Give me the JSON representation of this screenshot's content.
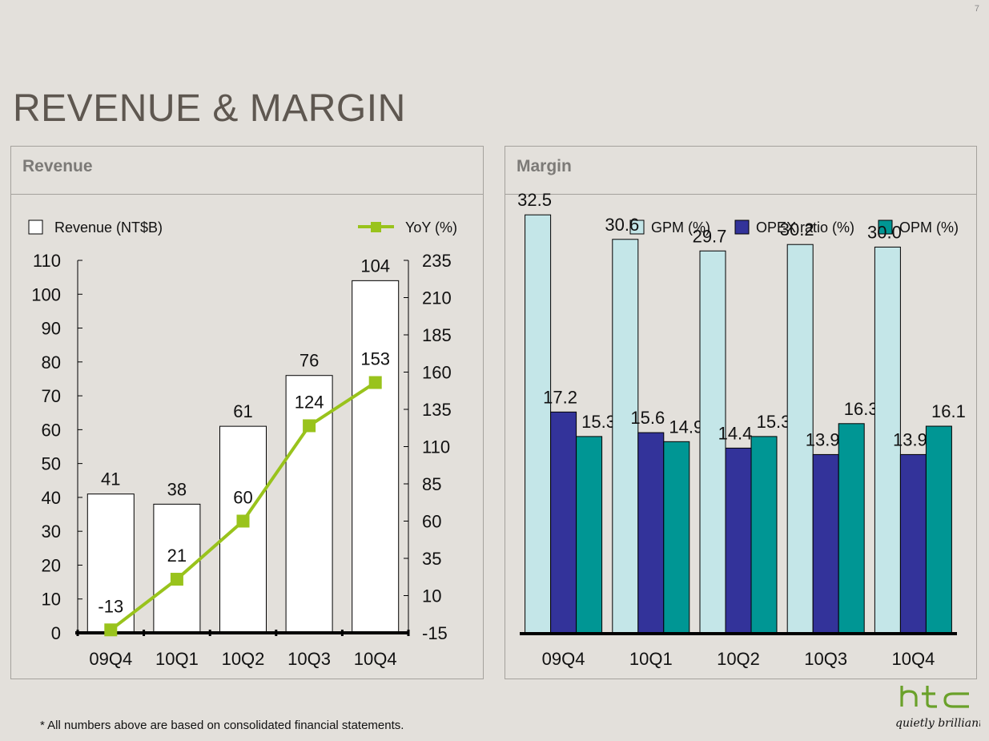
{
  "page": {
    "number": "7",
    "title": "REVENUE & MARGIN"
  },
  "footnote": "*  All numbers above are based on consolidated financial statements.",
  "logo": {
    "wordmark": "htc",
    "tagline": "quietly brilliant",
    "color": "#6aa12a"
  },
  "panels": {
    "revenue_title": "Revenue",
    "margin_title": "Margin"
  },
  "chart_data": [
    {
      "type": "bar",
      "categories": [
        "09Q4",
        "10Q1",
        "10Q2",
        "10Q3",
        "10Q4"
      ],
      "series": [
        {
          "name": "Revenue (NT$B)",
          "kind": "bar",
          "axis": "left",
          "values": [
            41,
            38,
            61,
            76,
            104
          ],
          "labels": [
            "41",
            "38",
            "61",
            "76",
            "104"
          ],
          "color": "#ffffff"
        },
        {
          "name": "YoY (%)",
          "kind": "line",
          "axis": "right",
          "values": [
            -13,
            21,
            60,
            124,
            153
          ],
          "labels": [
            "-13",
            "21",
            "60",
            "124",
            "153"
          ],
          "color": "#99c31c"
        }
      ],
      "ylim": [
        0,
        110
      ],
      "yticks": [
        0,
        10,
        20,
        30,
        40,
        50,
        60,
        70,
        80,
        90,
        100,
        110
      ],
      "y2lim": [
        -15,
        235
      ],
      "y2ticks": [
        -15,
        10,
        35,
        60,
        85,
        110,
        135,
        160,
        185,
        210,
        235
      ],
      "legend": "top"
    },
    {
      "type": "bar",
      "categories": [
        "09Q4",
        "10Q1",
        "10Q2",
        "10Q3",
        "10Q4"
      ],
      "series": [
        {
          "name": "GPM (%)",
          "values": [
            32.5,
            30.6,
            29.7,
            30.2,
            30.0
          ],
          "labels": [
            "32.5",
            "30.6",
            "29.7",
            "30.2",
            "30.0"
          ],
          "color": "#c4e6e8"
        },
        {
          "name": "OPEX ratio (%)",
          "values": [
            17.2,
            15.6,
            14.4,
            13.9,
            13.9
          ],
          "labels": [
            "17.2",
            "15.6",
            "14.4",
            "13.9",
            "13.9"
          ],
          "color": "#33339a"
        },
        {
          "name": "OPM (%)",
          "values": [
            15.3,
            14.9,
            15.3,
            16.3,
            16.1
          ],
          "labels": [
            "15.3",
            "14.9",
            "15.3",
            "16.3",
            "16.1"
          ],
          "color": "#009694"
        }
      ],
      "ylim": [
        0,
        35
      ],
      "legend": "top-right"
    }
  ]
}
